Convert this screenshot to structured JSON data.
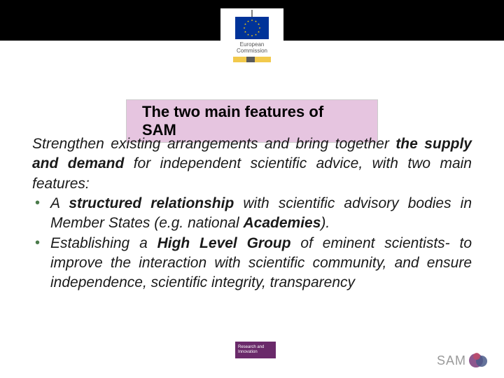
{
  "logo": {
    "line1": "European",
    "line2": "Commission",
    "bar_colors": [
      "#f2c94c",
      "#5a5a5a",
      "#f2c94c"
    ]
  },
  "title": "The two main features of SAM",
  "title_bg": "#e6c5e0",
  "intro": {
    "pre": "Strengthen existing arrangements and bring together ",
    "bold1": "the supply and demand",
    "post": " for independent scientific advice, with two main features:"
  },
  "bullets": [
    {
      "parts": [
        {
          "t": "A ",
          "b": false
        },
        {
          "t": "structured relationship",
          "b": true
        },
        {
          "t": " with scientific advisory bodies in Member States (e.g. national ",
          "b": false
        },
        {
          "t": "Academies",
          "b": true
        },
        {
          "t": ").",
          "b": false
        }
      ]
    },
    {
      "parts": [
        {
          "t": "Establishing a ",
          "b": false
        },
        {
          "t": "High Level Group",
          "b": true
        },
        {
          "t": " of eminent scientists- to improve the interaction with scientific community, and ensure independence, scientific integrity, transparency",
          "b": false
        }
      ]
    }
  ],
  "footer": {
    "badge_line1": "Research and",
    "badge_line2": "Innovation",
    "badge_bg": "#6a2a6a",
    "sam_label": "SAM",
    "sam_circles": [
      {
        "bg": "#7a3a7a",
        "w": 20,
        "h": 20,
        "l": 0,
        "t": 1
      },
      {
        "bg": "#4a5a8a",
        "w": 16,
        "h": 16,
        "l": 10,
        "t": 4
      },
      {
        "bg": "#c04a6a",
        "w": 10,
        "h": 10,
        "l": 6,
        "t": 0
      }
    ]
  },
  "eu_flag": {
    "bg": "#003399",
    "star": "#ffcc00"
  }
}
